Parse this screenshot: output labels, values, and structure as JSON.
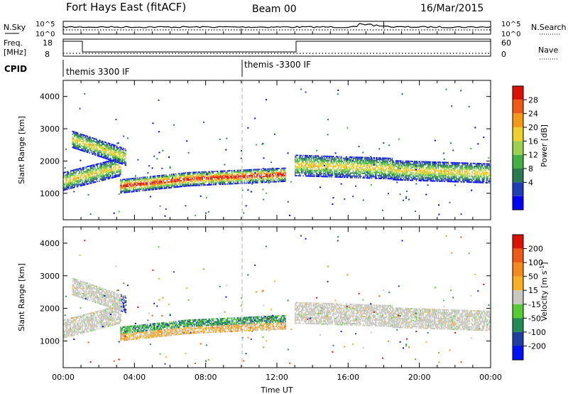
{
  "header": {
    "station": "Fort Hays East (fitACF)",
    "beam": "Beam 00",
    "date": "16/Mar/2015"
  },
  "strip_panel": {
    "left_label": "N.Sky",
    "right_label": "N.Search",
    "left_ticks": [
      "10^5",
      "10^0"
    ],
    "right_ticks": [
      "10^5",
      "10^0"
    ]
  },
  "freq_panel": {
    "left_label_line1": "Freq.",
    "left_label_line2": "[MHz]",
    "right_label": "Nave",
    "left_ticks": [
      "18",
      "8"
    ],
    "right_ticks": [
      "60",
      "0"
    ]
  },
  "cpid": {
    "label": "CPID",
    "segments": [
      {
        "text": "themis 3300 IF",
        "start_hour": 0
      },
      {
        "text": "themis -3300 IF",
        "start_hour": 10
      }
    ]
  },
  "chart_data": [
    {
      "type": "heatmap",
      "name": "power",
      "ylabel": "Slant Range [km]",
      "ylim": [
        180,
        4500
      ],
      "yticks": [
        "1000",
        "2000",
        "3000",
        "4000"
      ],
      "x_range_hours": [
        0,
        24
      ],
      "colorbar": {
        "label": "Power [dB]",
        "ticks": [
          "28",
          "24",
          "20",
          "16",
          "12",
          "8",
          "4"
        ],
        "colors": [
          "#0000ff",
          "#1f3fb8",
          "#2a7a50",
          "#43b043",
          "#9ad24a",
          "#f0d02a",
          "#f39a17",
          "#f05a10",
          "#e01000"
        ]
      },
      "scatter_bands": [
        {
          "t0": 0.0,
          "t1": 3.2,
          "c0": 1350,
          "c1": 1800,
          "w": 550
        },
        {
          "t0": 0.5,
          "t1": 3.5,
          "c0": 2650,
          "c1": 2100,
          "w": 500
        },
        {
          "t0": 3.2,
          "t1": 7.0,
          "c0": 1200,
          "c1": 1420,
          "w": 420
        },
        {
          "t0": 7.0,
          "t1": 12.5,
          "c0": 1420,
          "c1": 1560,
          "w": 420
        },
        {
          "t0": 13.0,
          "t1": 18.5,
          "c0": 1850,
          "c1": 1750,
          "w": 650
        },
        {
          "t0": 18.5,
          "t1": 24.0,
          "c0": 1700,
          "c1": 1600,
          "w": 600
        }
      ]
    },
    {
      "type": "heatmap",
      "name": "velocity",
      "ylabel": "Slant Range [km]",
      "xlabel": "Time UT",
      "ylim": [
        180,
        4500
      ],
      "yticks": [
        "1000",
        "2000",
        "3000",
        "4000"
      ],
      "x_range_hours": [
        0,
        24
      ],
      "xticks": [
        "00:00",
        "04:00",
        "08:00",
        "12:00",
        "16:00",
        "20:00",
        "00:00"
      ],
      "colorbar": {
        "label": "Velocity [m s",
        "label_exp": "-1",
        "label_close": "]",
        "ticks": [
          "200",
          "100",
          "50",
          "15",
          "-15",
          "-50",
          "-100",
          "-200"
        ],
        "colors": [
          "#0010ff",
          "#1e3fa0",
          "#228a55",
          "#55cc30",
          "#c8c8c0",
          "#f8b020",
          "#f58a18",
          "#f05a10",
          "#e01000"
        ]
      }
    }
  ]
}
